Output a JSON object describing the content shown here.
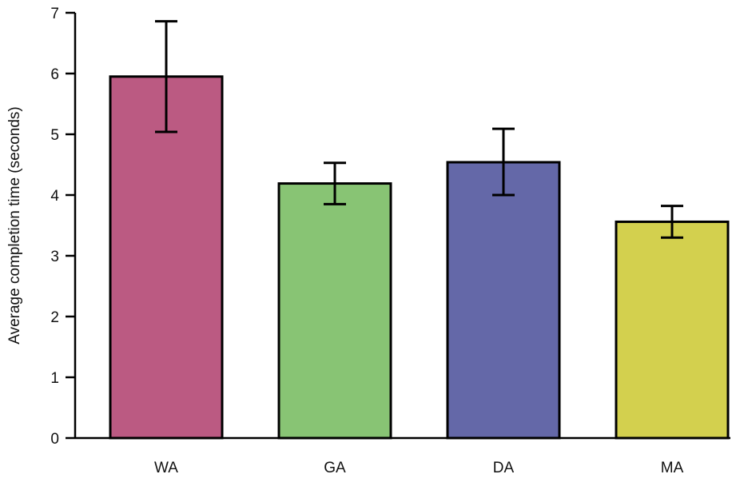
{
  "chart_data": {
    "type": "bar",
    "title": "",
    "xlabel": "",
    "ylabel": "Average completion time (seconds)",
    "categories": [
      "WA",
      "GA",
      "DA",
      "MA"
    ],
    "values": [
      5.95,
      4.19,
      4.54,
      3.56
    ],
    "error_low": [
      5.04,
      3.85,
      4.0,
      3.3
    ],
    "error_high": [
      6.86,
      4.53,
      5.09,
      3.82
    ],
    "colors": [
      "#bb5a82",
      "#88c474",
      "#6468a8",
      "#d3d04e"
    ],
    "ylim": [
      0,
      7
    ],
    "yticks": [
      0,
      1,
      2,
      3,
      4,
      5,
      6,
      7
    ],
    "grid": false,
    "legend": "none"
  }
}
